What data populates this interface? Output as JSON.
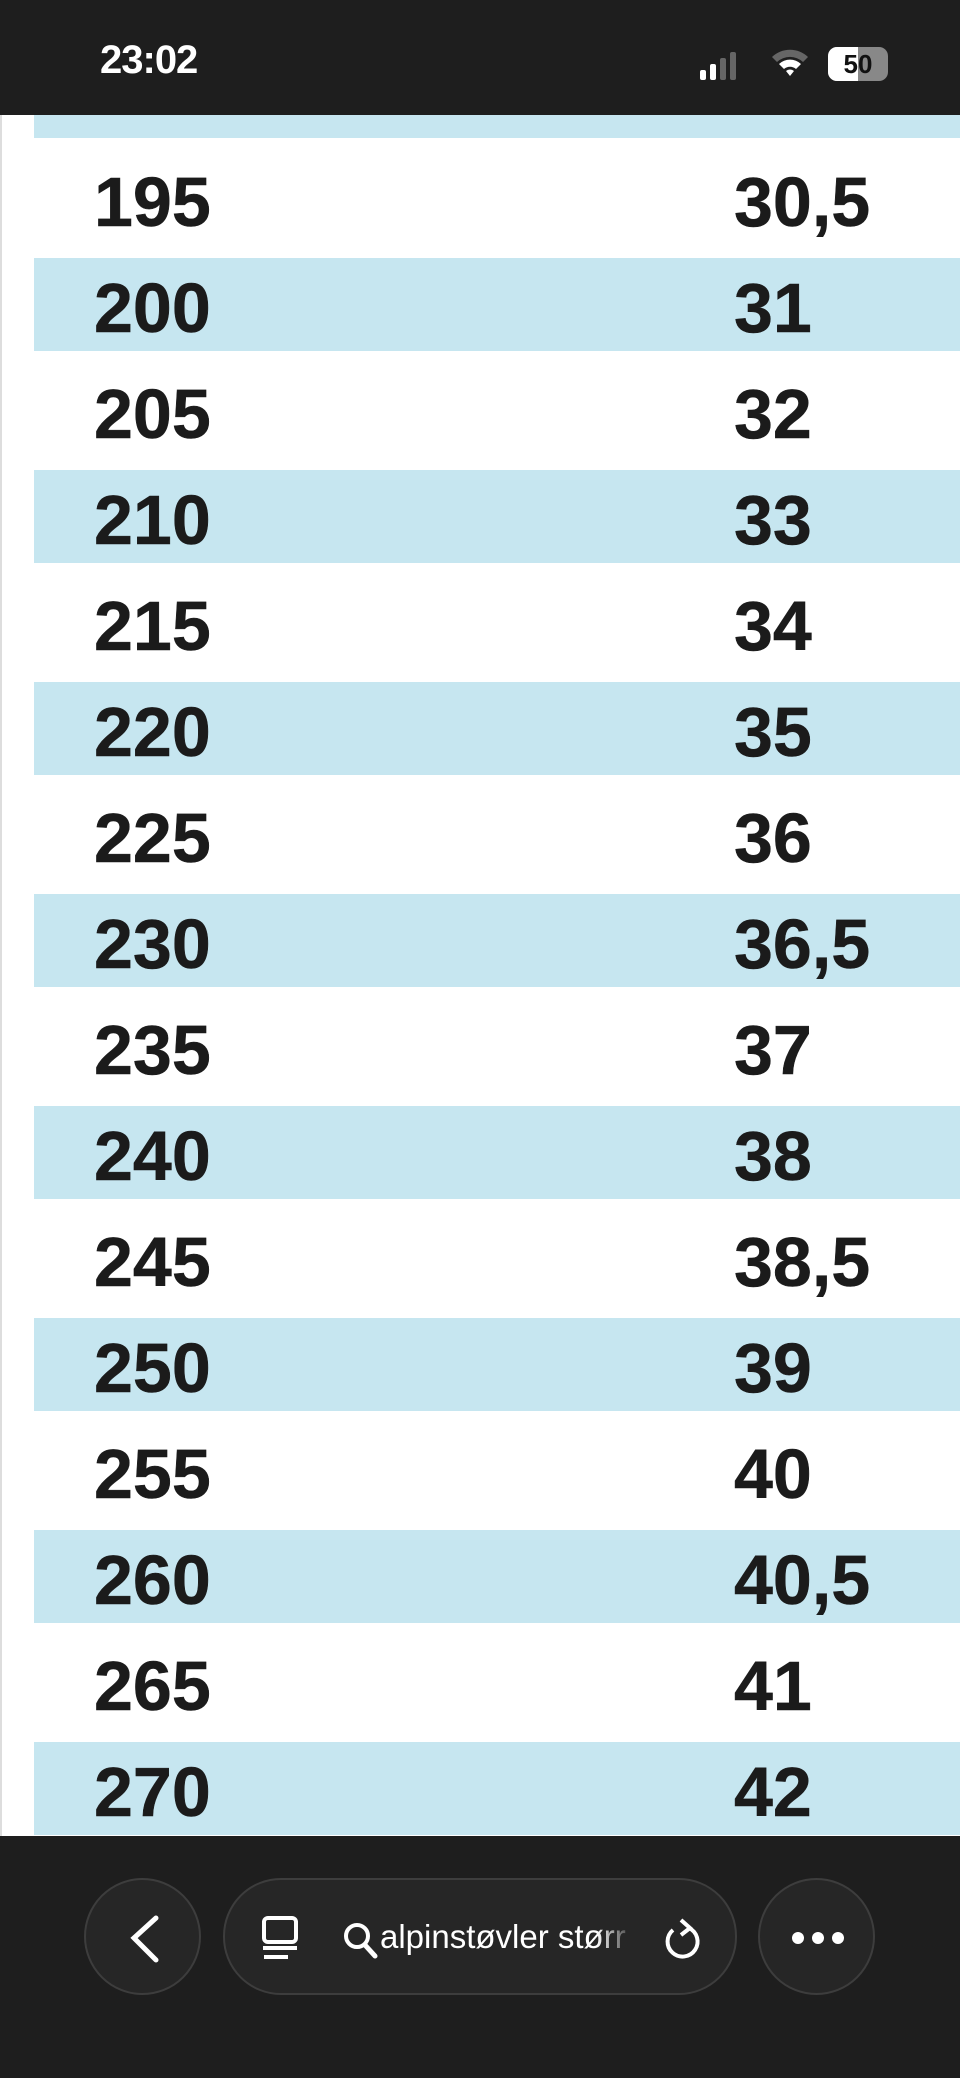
{
  "status_bar": {
    "time": "23:02",
    "battery": "50",
    "battery_level": 0.5
  },
  "table": {
    "stripe_color": "#c6e6f0",
    "rows": [
      [
        "195",
        "30,5"
      ],
      [
        "200",
        "31"
      ],
      [
        "205",
        "32"
      ],
      [
        "210",
        "33"
      ],
      [
        "215",
        "34"
      ],
      [
        "220",
        "35"
      ],
      [
        "225",
        "36"
      ],
      [
        "230",
        "36,5"
      ],
      [
        "235",
        "37"
      ],
      [
        "240",
        "38"
      ],
      [
        "245",
        "38,5"
      ],
      [
        "250",
        "39"
      ],
      [
        "255",
        "40"
      ],
      [
        "260",
        "40,5"
      ],
      [
        "265",
        "41"
      ],
      [
        "270",
        "42"
      ]
    ]
  },
  "toolbar": {
    "address_text": "alpinstøvler størr",
    "icons": [
      "back-icon",
      "tabs-icon",
      "search-icon",
      "reload-icon",
      "more-icon"
    ]
  }
}
